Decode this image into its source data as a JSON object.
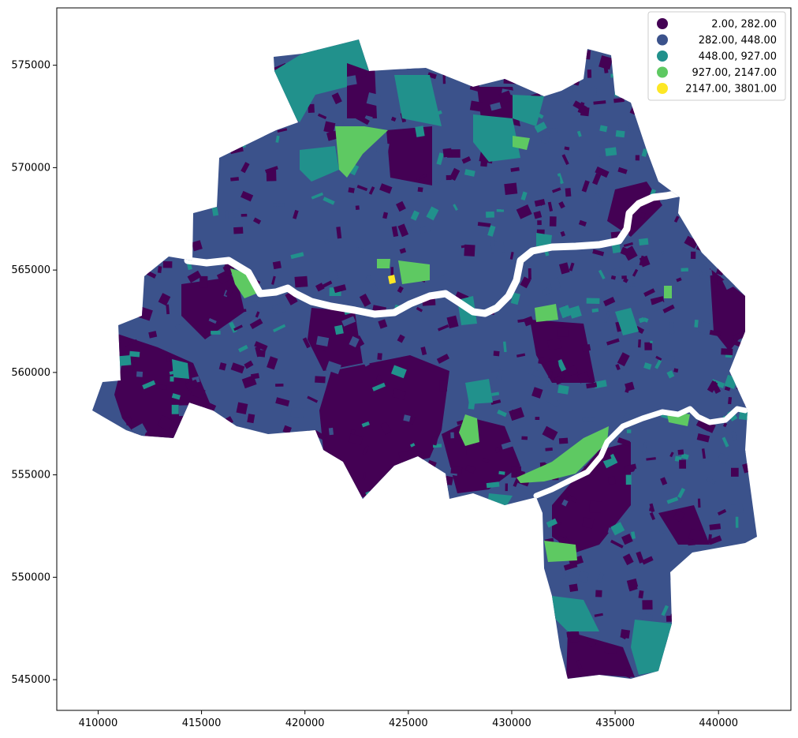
{
  "chart_data": {
    "type": "choropleth",
    "x_ticks": [
      "410000",
      "415000",
      "420000",
      "425000",
      "430000",
      "435000",
      "440000"
    ],
    "y_ticks": [
      "575000",
      "570000",
      "565000",
      "560000",
      "555000",
      "550000",
      "545000"
    ],
    "xlim": [
      408000,
      443500
    ],
    "ylim": [
      543500,
      577800
    ],
    "legend": {
      "placement": "top-right",
      "entries": [
        {
          "label": "2.00,  282.00",
          "color": "#440154"
        },
        {
          "label": "282.00,  448.00",
          "color": "#3b528b"
        },
        {
          "label": "448.00,  927.00",
          "color": "#21918c"
        },
        {
          "label": "927.00, 2147.00",
          "color": "#5ec962"
        },
        {
          "label": "2147.00, 3801.00",
          "color": "#fde725"
        }
      ]
    },
    "grid": false
  }
}
